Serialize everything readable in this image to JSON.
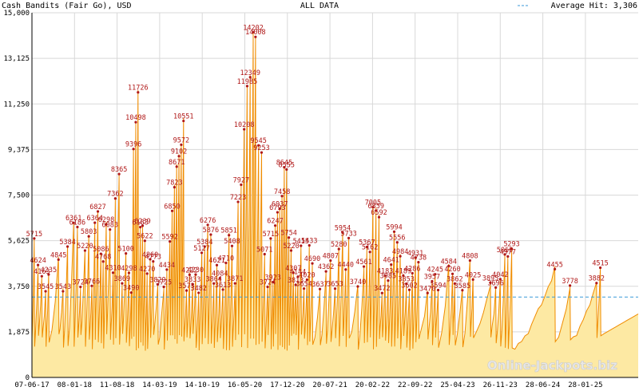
{
  "header": {
    "title": "Cash Bandits (Fair Go), USD",
    "range": "ALL DATA",
    "average_label": "Average Hit: 3,306"
  },
  "watermark": "Online-Jackpots.biz",
  "colors": {
    "area_fill": "#fde9a3",
    "line": "#f08c00",
    "grid": "#d8d8d8",
    "average_line": "#3a9ad9",
    "peak_label": "#b01818"
  },
  "chart_data": {
    "type": "area",
    "title": "Cash Bandits (Fair Go), USD",
    "ylim": [
      0,
      15000
    ],
    "y_ticks": [
      "0",
      "1,875",
      "3,750",
      "5,625",
      "7,500",
      "9,375",
      "11,250",
      "13,125",
      "15,000"
    ],
    "x_ticks": [
      "07-06-17",
      "08-01-18",
      "11-08-18",
      "14-03-19",
      "14-10-19",
      "16-05-20",
      "17-12-20",
      "20-07-21",
      "20-02-22",
      "22-09-22",
      "25-04-23",
      "26-11-23",
      "28-06-24",
      "28-01-25"
    ],
    "average": 3306,
    "grid": true,
    "peaks": [
      {
        "x": 0.03,
        "y": 5715,
        "label": "5715"
      },
      {
        "x": 0.08,
        "y": 4624,
        "label": "4624"
      },
      {
        "x": 0.13,
        "y": 4163,
        "label": "4163"
      },
      {
        "x": 0.18,
        "y": 3545,
        "label": "3545"
      },
      {
        "x": 0.22,
        "y": 4235,
        "label": "4235"
      },
      {
        "x": 0.35,
        "y": 4845,
        "label": "4845"
      },
      {
        "x": 0.41,
        "y": 3543,
        "label": "3543"
      },
      {
        "x": 0.47,
        "y": 5384,
        "label": "5384"
      },
      {
        "x": 0.55,
        "y": 6361,
        "label": "6361"
      },
      {
        "x": 0.6,
        "y": 6186,
        "label": "6186"
      },
      {
        "x": 0.64,
        "y": 3724,
        "label": "3724"
      },
      {
        "x": 0.7,
        "y": 5220,
        "label": "5220"
      },
      {
        "x": 0.75,
        "y": 5803,
        "label": "5803"
      },
      {
        "x": 0.79,
        "y": 3766,
        "label": "3766"
      },
      {
        "x": 0.83,
        "y": 6364,
        "label": "6364"
      },
      {
        "x": 0.87,
        "y": 6827,
        "label": "6827"
      },
      {
        "x": 0.91,
        "y": 5086,
        "label": "5086"
      },
      {
        "x": 0.94,
        "y": 4768,
        "label": "4768"
      },
      {
        "x": 0.98,
        "y": 6298,
        "label": "6298"
      },
      {
        "x": 1.03,
        "y": 6083,
        "label": "6083"
      },
      {
        "x": 1.07,
        "y": 4310,
        "label": "4310"
      },
      {
        "x": 1.1,
        "y": 7362,
        "label": "7362"
      },
      {
        "x": 1.15,
        "y": 8365,
        "label": "8365"
      },
      {
        "x": 1.19,
        "y": 3869,
        "label": "3869"
      },
      {
        "x": 1.24,
        "y": 5100,
        "label": "5100"
      },
      {
        "x": 1.28,
        "y": 4298,
        "label": "4298"
      },
      {
        "x": 1.31,
        "y": 3490,
        "label": "3490"
      },
      {
        "x": 1.34,
        "y": 9396,
        "label": "9396"
      },
      {
        "x": 1.37,
        "y": 10498,
        "label": "10498"
      },
      {
        "x": 1.4,
        "y": 11726,
        "label": "11726"
      },
      {
        "x": 1.43,
        "y": 6183,
        "label": "6183"
      },
      {
        "x": 1.46,
        "y": 6239,
        "label": "6239"
      },
      {
        "x": 1.49,
        "y": 5622,
        "label": "5622"
      },
      {
        "x": 1.52,
        "y": 4270,
        "label": "4270"
      },
      {
        "x": 1.56,
        "y": 4860,
        "label": "4860"
      },
      {
        "x": 1.6,
        "y": 4773,
        "label": "4773"
      },
      {
        "x": 1.66,
        "y": 3829,
        "label": "3829"
      },
      {
        "x": 1.74,
        "y": 3725,
        "label": "3725"
      },
      {
        "x": 1.78,
        "y": 4434,
        "label": "4434"
      },
      {
        "x": 1.82,
        "y": 5592,
        "label": "5592"
      },
      {
        "x": 1.85,
        "y": 6850,
        "label": "6850"
      },
      {
        "x": 1.88,
        "y": 7823,
        "label": "7823"
      },
      {
        "x": 1.91,
        "y": 8671,
        "label": "8671"
      },
      {
        "x": 1.94,
        "y": 9102,
        "label": "9102"
      },
      {
        "x": 1.97,
        "y": 9572,
        "label": "9572"
      },
      {
        "x": 2.0,
        "y": 10551,
        "label": "10551"
      },
      {
        "x": 2.04,
        "y": 3573,
        "label": "3573"
      },
      {
        "x": 2.08,
        "y": 4222,
        "label": "4222"
      },
      {
        "x": 2.12,
        "y": 3833,
        "label": "3833"
      },
      {
        "x": 2.16,
        "y": 4230,
        "label": "4230"
      },
      {
        "x": 2.2,
        "y": 3482,
        "label": "3482"
      },
      {
        "x": 2.24,
        "y": 5127,
        "label": "5127"
      },
      {
        "x": 2.28,
        "y": 5384,
        "label": "5384"
      },
      {
        "x": 2.32,
        "y": 6276,
        "label": "6276"
      },
      {
        "x": 2.36,
        "y": 5876,
        "label": "5876"
      },
      {
        "x": 2.4,
        "y": 3864,
        "label": "3864"
      },
      {
        "x": 2.44,
        "y": 4621,
        "label": "4621"
      },
      {
        "x": 2.48,
        "y": 4084,
        "label": "4084"
      },
      {
        "x": 2.52,
        "y": 3613,
        "label": "3613"
      },
      {
        "x": 2.56,
        "y": 4710,
        "label": "4710"
      },
      {
        "x": 2.6,
        "y": 5851,
        "label": "5851"
      },
      {
        "x": 2.64,
        "y": 5408,
        "label": "5408"
      },
      {
        "x": 2.68,
        "y": 3871,
        "label": "3871"
      },
      {
        "x": 2.72,
        "y": 7223,
        "label": "7223"
      },
      {
        "x": 2.76,
        "y": 7927,
        "label": "7927"
      },
      {
        "x": 2.8,
        "y": 10208,
        "label": "10208"
      },
      {
        "x": 2.84,
        "y": 11985,
        "label": "11985"
      },
      {
        "x": 2.88,
        "y": 12349,
        "label": "12349"
      },
      {
        "x": 2.92,
        "y": 14202,
        "label": "14202"
      },
      {
        "x": 2.95,
        "y": 14008,
        "label": "14008"
      },
      {
        "x": 2.99,
        "y": 9545,
        "label": "9545"
      },
      {
        "x": 3.03,
        "y": 9253,
        "label": "9253"
      },
      {
        "x": 3.07,
        "y": 5071,
        "label": "5071"
      },
      {
        "x": 3.11,
        "y": 3724,
        "label": "3724"
      },
      {
        "x": 3.15,
        "y": 5715,
        "label": "5715"
      },
      {
        "x": 3.18,
        "y": 3923,
        "label": "3923"
      },
      {
        "x": 3.21,
        "y": 6247,
        "label": "6247"
      },
      {
        "x": 3.24,
        "y": 6793,
        "label": "6793"
      },
      {
        "x": 3.27,
        "y": 6937,
        "label": "6937"
      },
      {
        "x": 3.3,
        "y": 7458,
        "label": "7458"
      },
      {
        "x": 3.33,
        "y": 8645,
        "label": "8645"
      },
      {
        "x": 3.36,
        "y": 8555,
        "label": "8555"
      },
      {
        "x": 3.39,
        "y": 5754,
        "label": "5754"
      },
      {
        "x": 3.42,
        "y": 5220,
        "label": "5220"
      },
      {
        "x": 3.45,
        "y": 4307,
        "label": "4307"
      },
      {
        "x": 3.48,
        "y": 3813,
        "label": "3813"
      },
      {
        "x": 3.51,
        "y": 4144,
        "label": "4144"
      },
      {
        "x": 3.55,
        "y": 5415,
        "label": "5415"
      },
      {
        "x": 3.59,
        "y": 3654,
        "label": "3654"
      },
      {
        "x": 3.63,
        "y": 4020,
        "label": "4020"
      },
      {
        "x": 3.66,
        "y": 5433,
        "label": "5433"
      },
      {
        "x": 3.7,
        "y": 4690,
        "label": "4690"
      },
      {
        "x": 3.8,
        "y": 3637,
        "label": "3637"
      },
      {
        "x": 3.88,
        "y": 4362,
        "label": "4362"
      },
      {
        "x": 3.94,
        "y": 4807,
        "label": "4807"
      },
      {
        "x": 4.0,
        "y": 3653,
        "label": "3653"
      },
      {
        "x": 4.05,
        "y": 5280,
        "label": "5280"
      },
      {
        "x": 4.1,
        "y": 5954,
        "label": "5954"
      },
      {
        "x": 4.14,
        "y": 4440,
        "label": "4440"
      },
      {
        "x": 4.18,
        "y": 5733,
        "label": "5733"
      },
      {
        "x": 4.3,
        "y": 3740,
        "label": "3740"
      },
      {
        "x": 4.38,
        "y": 4561,
        "label": "4561"
      },
      {
        "x": 4.42,
        "y": 5367,
        "label": "5367"
      },
      {
        "x": 4.46,
        "y": 5162,
        "label": "5162"
      },
      {
        "x": 4.5,
        "y": 7005,
        "label": "7005"
      },
      {
        "x": 4.54,
        "y": 6859,
        "label": "6859"
      },
      {
        "x": 4.58,
        "y": 6592,
        "label": "6592"
      },
      {
        "x": 4.62,
        "y": 3472,
        "label": "3472"
      },
      {
        "x": 4.66,
        "y": 4183,
        "label": "4183"
      },
      {
        "x": 4.7,
        "y": 3985,
        "label": "3985"
      },
      {
        "x": 4.74,
        "y": 4641,
        "label": "4641"
      },
      {
        "x": 4.78,
        "y": 5994,
        "label": "5994"
      },
      {
        "x": 4.82,
        "y": 5556,
        "label": "5556"
      },
      {
        "x": 4.86,
        "y": 4984,
        "label": "4984"
      },
      {
        "x": 4.9,
        "y": 4189,
        "label": "4189"
      },
      {
        "x": 4.94,
        "y": 3853,
        "label": "3853"
      },
      {
        "x": 4.98,
        "y": 3602,
        "label": "3602"
      },
      {
        "x": 5.02,
        "y": 4286,
        "label": "4286"
      },
      {
        "x": 5.06,
        "y": 4931,
        "label": "4931"
      },
      {
        "x": 5.1,
        "y": 4738,
        "label": "4738"
      },
      {
        "x": 5.22,
        "y": 3470,
        "label": "3470"
      },
      {
        "x": 5.28,
        "y": 3957,
        "label": "3957"
      },
      {
        "x": 5.32,
        "y": 4245,
        "label": "4245"
      },
      {
        "x": 5.36,
        "y": 3594,
        "label": "3594"
      },
      {
        "x": 5.5,
        "y": 4584,
        "label": "4584"
      },
      {
        "x": 5.55,
        "y": 4260,
        "label": "4260"
      },
      {
        "x": 5.58,
        "y": 3862,
        "label": "3862"
      },
      {
        "x": 5.68,
        "y": 3585,
        "label": "3585"
      },
      {
        "x": 5.78,
        "y": 4808,
        "label": "4808"
      },
      {
        "x": 5.82,
        "y": 4025,
        "label": "4025"
      },
      {
        "x": 6.05,
        "y": 3895,
        "label": "3895"
      },
      {
        "x": 6.12,
        "y": 3696,
        "label": "3696"
      },
      {
        "x": 6.18,
        "y": 4042,
        "label": "4042"
      },
      {
        "x": 6.24,
        "y": 5060,
        "label": "5060"
      },
      {
        "x": 6.28,
        "y": 4977,
        "label": "4977"
      },
      {
        "x": 6.33,
        "y": 5293,
        "label": "5293"
      },
      {
        "x": 6.9,
        "y": 4455,
        "label": "4455"
      },
      {
        "x": 7.1,
        "y": 3778,
        "label": "3778"
      },
      {
        "x": 7.45,
        "y": 3882,
        "label": "3882"
      },
      {
        "x": 7.5,
        "y": 4515,
        "label": "4515"
      }
    ]
  }
}
